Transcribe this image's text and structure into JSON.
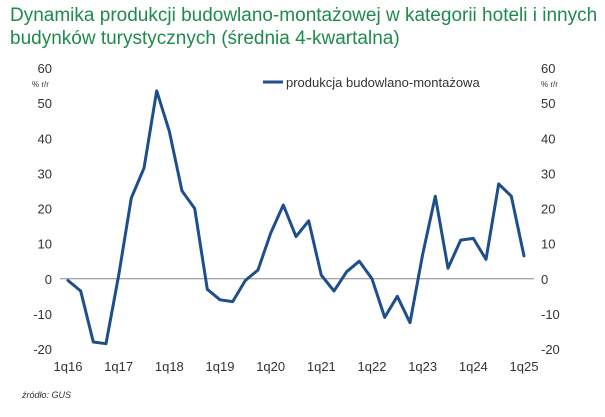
{
  "chart_data": {
    "type": "line",
    "title": "Dynamika produkcji budowlano-montażowej w kategorii hoteli i innych budynków turystycznych (średnia 4-kwartalna)",
    "y_unit_left": "% r/r",
    "y_unit_right": "% r/r",
    "ylim": [
      -20,
      60
    ],
    "yticks": [
      "-20",
      "-10",
      "0",
      "10",
      "20",
      "30",
      "40",
      "50",
      "60"
    ],
    "ytick_values": [
      -20,
      -10,
      0,
      10,
      20,
      30,
      40,
      50,
      60
    ],
    "x_labels": [
      "1q16",
      "1q17",
      "1q18",
      "1q19",
      "1q20",
      "1q21",
      "1q22",
      "1q23",
      "1q24",
      "1q25"
    ],
    "x_label_indices": [
      0,
      4,
      8,
      12,
      16,
      20,
      24,
      28,
      32,
      36
    ],
    "x_count": 37,
    "legend_position": "top-right",
    "series": [
      {
        "name": "produkcja budowlano-montażowa",
        "color": "#1f4e8c",
        "values": [
          -0.5,
          -3.5,
          -18,
          -18.5,
          1,
          23,
          31.5,
          53.5,
          42,
          25,
          20,
          -3,
          -6,
          -6.5,
          -0.5,
          2.5,
          13,
          21,
          12,
          16.5,
          1,
          -3.5,
          2,
          5,
          0,
          -11,
          -5,
          -12.5,
          7,
          23.5,
          3,
          11,
          11.5,
          5.5,
          27,
          23.5,
          6.5
        ]
      }
    ]
  },
  "source": "źródło: GUS"
}
